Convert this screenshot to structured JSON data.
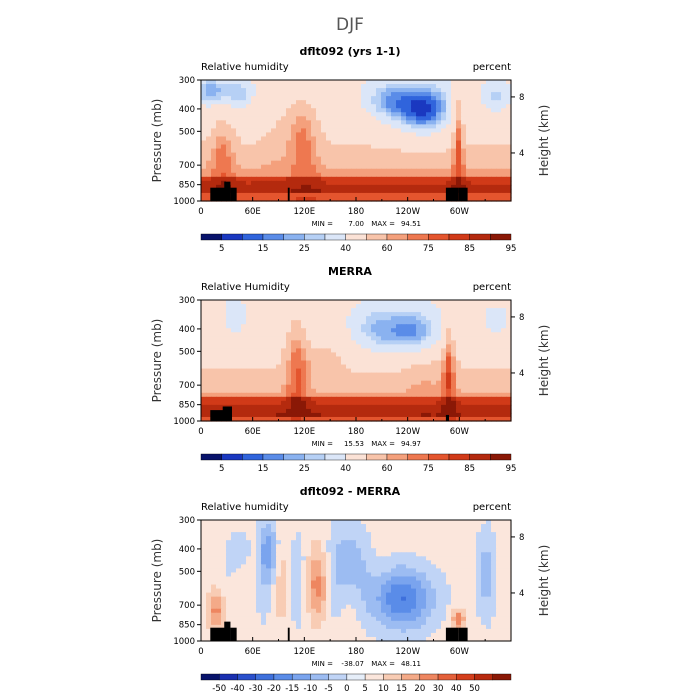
{
  "figure": {
    "title": "DJF"
  },
  "chart_data": [
    {
      "type": "heatmap",
      "title": "dflt092 (yrs 1-1)",
      "left_label": "Relative humidity",
      "right_label": "percent",
      "xlabel": "",
      "ylabel": "Pressure (mb)",
      "y2label": "Height (km)",
      "x_ticks": [
        "0",
        "60E",
        "120E",
        "180",
        "120W",
        "60W"
      ],
      "x_tick_lon": [
        0,
        60,
        120,
        180,
        240,
        300
      ],
      "x_range": [
        0,
        360
      ],
      "y_ticks": [
        "300",
        "400",
        "500",
        "700",
        "850",
        "1000"
      ],
      "y_tick_p": [
        300,
        400,
        500,
        700,
        850,
        1000
      ],
      "y_range": [
        1000,
        300
      ],
      "y2_ticks": [
        "4",
        "8"
      ],
      "y2_tick_p": [
        620,
        355
      ],
      "min_label": "MIN =",
      "min_value": "7.00",
      "max_label": "MAX =",
      "max_value": "94.51",
      "colorbar": {
        "labels": [
          "5",
          "15",
          "25",
          "40",
          "60",
          "75",
          "85",
          "95"
        ],
        "colors": [
          "#08136b",
          "#1a38c0",
          "#3064dc",
          "#5a8ce8",
          "#8ab2f0",
          "#b6d0f5",
          "#dbe6f8",
          "#fbe2d6",
          "#f8c4aa",
          "#f4a07c",
          "#ee7850",
          "#e4552e",
          "#d13a18",
          "#b42a0e",
          "#8a1806"
        ]
      }
    },
    {
      "type": "heatmap",
      "title": "MERRA",
      "left_label": "Relative Humidity",
      "right_label": "percent",
      "xlabel": "",
      "ylabel": "Pressure (mb)",
      "y2label": "Height (km)",
      "x_ticks": [
        "0",
        "60E",
        "120E",
        "180",
        "120W",
        "60W"
      ],
      "x_tick_lon": [
        0,
        60,
        120,
        180,
        240,
        300
      ],
      "x_range": [
        0,
        360
      ],
      "y_ticks": [
        "300",
        "400",
        "500",
        "700",
        "850",
        "1000"
      ],
      "y_tick_p": [
        300,
        400,
        500,
        700,
        850,
        1000
      ],
      "y_range": [
        1000,
        300
      ],
      "y2_ticks": [
        "4",
        "8"
      ],
      "y2_tick_p": [
        620,
        355
      ],
      "min_label": "MIN =",
      "min_value": "15.53",
      "max_label": "MAX =",
      "max_value": "94.97",
      "colorbar": {
        "labels": [
          "5",
          "15",
          "25",
          "40",
          "60",
          "75",
          "85",
          "95"
        ],
        "colors": [
          "#08136b",
          "#1a38c0",
          "#3064dc",
          "#5a8ce8",
          "#8ab2f0",
          "#b6d0f5",
          "#dbe6f8",
          "#fbe2d6",
          "#f8c4aa",
          "#f4a07c",
          "#ee7850",
          "#e4552e",
          "#d13a18",
          "#b42a0e",
          "#8a1806"
        ]
      }
    },
    {
      "type": "heatmap",
      "title": "dflt092 - MERRA",
      "left_label": "Relative humidity",
      "right_label": "percent",
      "xlabel": "",
      "ylabel": "Pressure (mb)",
      "y2label": "Height (km)",
      "x_ticks": [
        "0",
        "60E",
        "120E",
        "180",
        "120W",
        "60W"
      ],
      "x_tick_lon": [
        0,
        60,
        120,
        180,
        240,
        300
      ],
      "x_range": [
        0,
        360
      ],
      "y_ticks": [
        "300",
        "400",
        "500",
        "700",
        "850",
        "1000"
      ],
      "y_tick_p": [
        300,
        400,
        500,
        700,
        850,
        1000
      ],
      "y_range": [
        1000,
        300
      ],
      "y2_ticks": [
        "4",
        "8"
      ],
      "y2_tick_p": [
        620,
        355
      ],
      "min_label": "MIN =",
      "min_value": "-38.07",
      "max_label": "MAX =",
      "max_value": "48.11",
      "colorbar": {
        "labels": [
          "-50",
          "-40",
          "-30",
          "-20",
          "-15",
          "-10",
          "-5",
          "0",
          "5",
          "10",
          "15",
          "20",
          "30",
          "40",
          "50"
        ],
        "colors": [
          "#08136b",
          "#1a30b0",
          "#2a50cc",
          "#3e70dc",
          "#5a8ce8",
          "#7aa4ee",
          "#9cbcf2",
          "#c0d4f6",
          "#e6eef9",
          "#fbe6dc",
          "#f8ccb4",
          "#f4aa88",
          "#ee8660",
          "#e4603a",
          "#d43e1c",
          "#b82a0e",
          "#8a1806"
        ]
      }
    }
  ]
}
